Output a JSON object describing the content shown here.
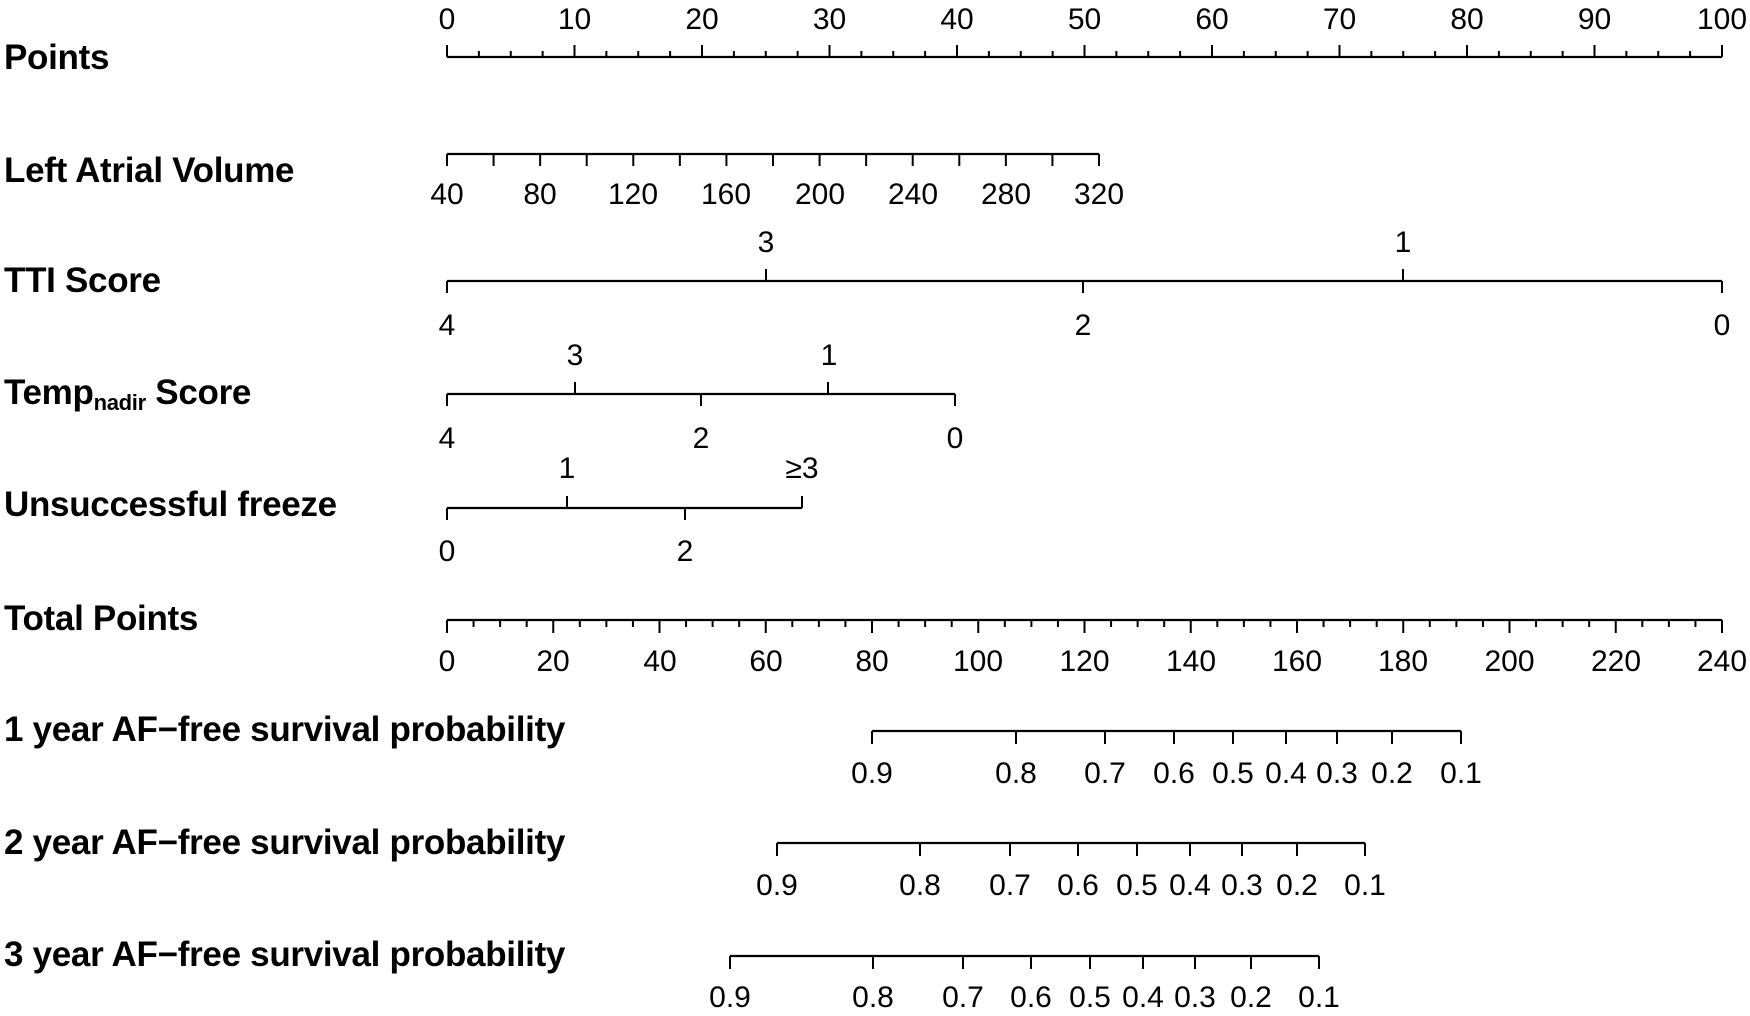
{
  "chart_data": {
    "type": "nomogram",
    "title": "",
    "points_scale": {
      "label": "Points",
      "min": 0,
      "max": 100,
      "major_ticks": [
        0,
        10,
        20,
        30,
        40,
        50,
        60,
        70,
        80,
        90,
        100
      ],
      "minor_step": 2.5
    },
    "variables": [
      {
        "name": "Left Atrial Volume",
        "ticks": [
          40,
          60,
          80,
          100,
          120,
          140,
          160,
          180,
          200,
          220,
          240,
          260,
          280,
          300,
          320
        ],
        "labels": [
          "40",
          "80",
          "120",
          "160",
          "200",
          "240",
          "280",
          "320"
        ],
        "points_at_min": 0,
        "points_at_max": 51
      },
      {
        "name": "TTI Score",
        "ticks": [
          {
            "value": "4",
            "points": 0,
            "side": "below"
          },
          {
            "value": "3",
            "points": 25,
            "side": "above"
          },
          {
            "value": "2",
            "points": 50,
            "side": "below"
          },
          {
            "value": "1",
            "points": 75,
            "side": "above"
          },
          {
            "value": "0",
            "points": 100,
            "side": "below"
          }
        ]
      },
      {
        "name": "Temp_nadir Score",
        "ticks": [
          {
            "value": "4",
            "points": 0,
            "side": "below"
          },
          {
            "value": "3",
            "points": 10,
            "side": "above"
          },
          {
            "value": "2",
            "points": 20,
            "side": "below"
          },
          {
            "value": "1",
            "points": 30,
            "side": "above"
          },
          {
            "value": "0",
            "points": 40,
            "side": "below"
          }
        ]
      },
      {
        "name": "Unsuccessful freeze",
        "ticks": [
          {
            "value": "0",
            "points": 0,
            "side": "below"
          },
          {
            "value": "1",
            "points": 9.4,
            "side": "above"
          },
          {
            "value": "2",
            "points": 18.6,
            "side": "below"
          },
          {
            "value": "≥3",
            "points": 27.8,
            "side": "above"
          }
        ]
      }
    ],
    "total_points_scale": {
      "label": "Total Points",
      "min": 0,
      "max": 240,
      "major_ticks": [
        0,
        20,
        40,
        60,
        80,
        100,
        120,
        140,
        160,
        180,
        200,
        220,
        240
      ],
      "minor_step": 5
    },
    "outcomes": [
      {
        "name": "1 year AF−free survival probability",
        "probabilities": [
          0.9,
          0.8,
          0.7,
          0.6,
          0.5,
          0.4,
          0.3,
          0.2,
          0.1
        ],
        "total_points": [
          80,
          107,
          124,
          137,
          148,
          158,
          168,
          178,
          191
        ]
      },
      {
        "name": "2 year AF−free survival probability",
        "probabilities": [
          0.9,
          0.8,
          0.7,
          0.6,
          0.5,
          0.4,
          0.3,
          0.2,
          0.1
        ],
        "total_points": [
          62,
          89,
          106,
          119,
          130,
          140,
          150,
          160,
          173
        ]
      },
      {
        "name": "3 year AF−free survival probability",
        "probabilities": [
          0.9,
          0.8,
          0.7,
          0.6,
          0.5,
          0.4,
          0.3,
          0.2,
          0.1
        ],
        "total_points": [
          53,
          80,
          97,
          110,
          121,
          131,
          141,
          151,
          164
        ]
      }
    ]
  },
  "labels": {
    "points": "Points",
    "lav": "Left Atrial Volume",
    "tti": "TTI Score",
    "temp_main": "Temp",
    "temp_sub": "nadir",
    "temp_tail": " Score",
    "freeze": "Unsuccessful freeze",
    "total": "Total Points",
    "y1": "1 year AF−free survival probability",
    "y2": "2 year AF−free survival probability",
    "y3": "3 year AF−free survival probability"
  },
  "ticks": {
    "points": [
      "0",
      "10",
      "20",
      "30",
      "40",
      "50",
      "60",
      "70",
      "80",
      "90",
      "100"
    ],
    "lav": [
      "40",
      "80",
      "120",
      "160",
      "200",
      "240",
      "280",
      "320"
    ],
    "tti_above": [
      "3",
      "1"
    ],
    "tti_below": [
      "4",
      "2",
      "0"
    ],
    "temp_above": [
      "3",
      "1"
    ],
    "temp_below": [
      "4",
      "2",
      "0"
    ],
    "freeze_above": [
      "1",
      "≥3"
    ],
    "freeze_below": [
      "0",
      "2"
    ],
    "total": [
      "0",
      "20",
      "40",
      "60",
      "80",
      "100",
      "120",
      "140",
      "160",
      "180",
      "200",
      "220",
      "240"
    ],
    "prob": [
      "0.9",
      "0.8",
      "0.7",
      "0.6",
      "0.5",
      "0.4",
      "0.3",
      "0.2",
      "0.1"
    ]
  }
}
